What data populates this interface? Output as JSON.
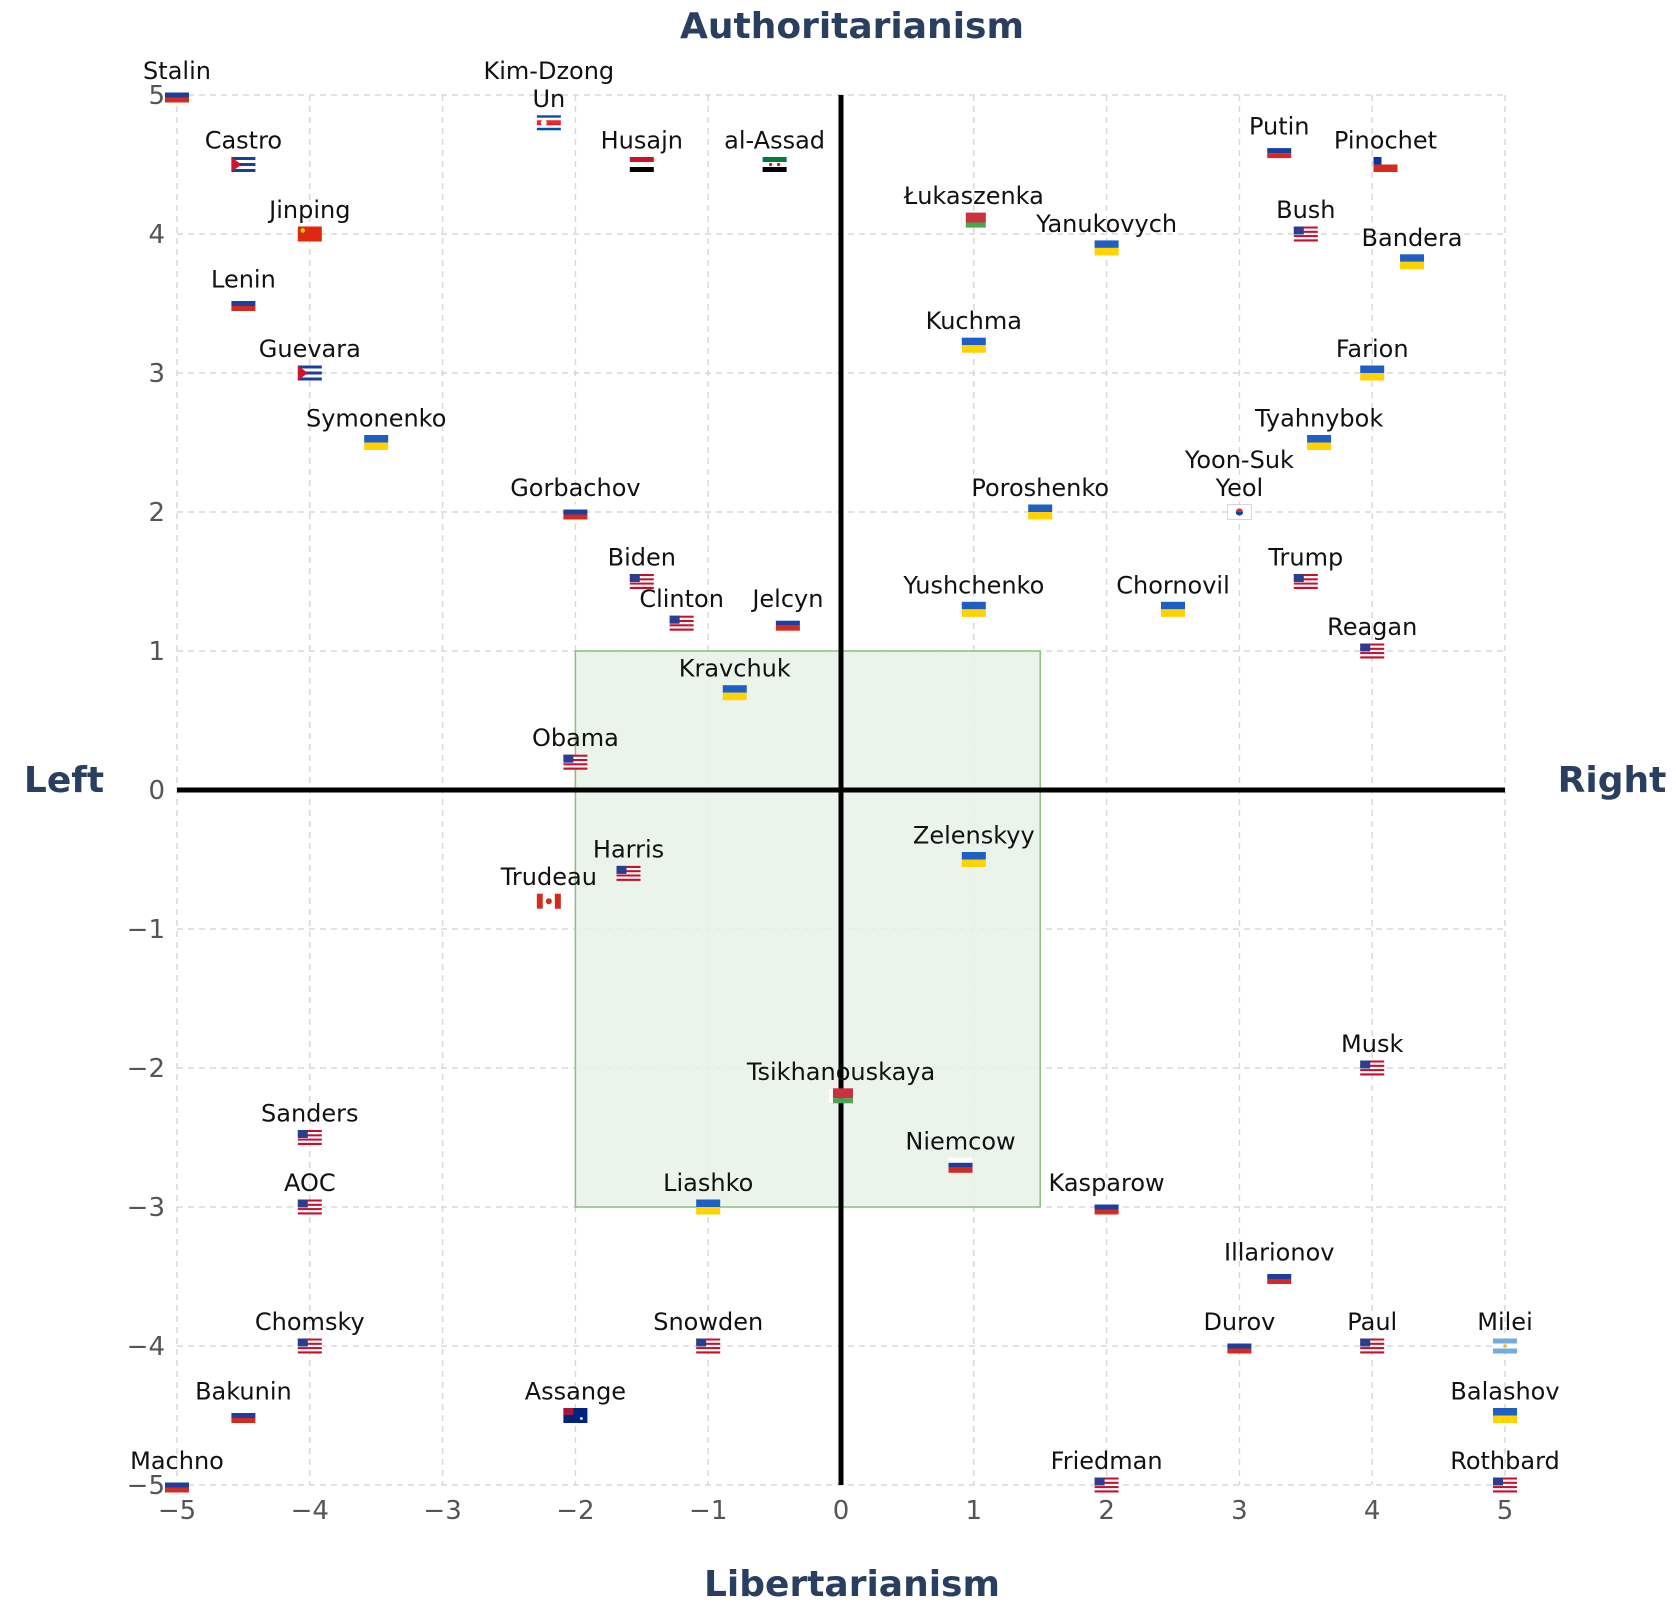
{
  "chart_data": {
    "type": "scatter",
    "title": "",
    "axis_titles": {
      "top": "Authoritarianism",
      "bottom": "Libertarianism",
      "left": "Left",
      "right": "Right"
    },
    "xlim": [
      -5,
      5
    ],
    "ylim": [
      -5,
      5
    ],
    "x_ticks": [
      {
        "value": -5,
        "label": "−5"
      },
      {
        "value": -4,
        "label": "−4"
      },
      {
        "value": -3,
        "label": "−3"
      },
      {
        "value": -2,
        "label": "−2"
      },
      {
        "value": -1,
        "label": "−1"
      },
      {
        "value": 0,
        "label": "0"
      },
      {
        "value": 1,
        "label": "1"
      },
      {
        "value": 2,
        "label": "2"
      },
      {
        "value": 3,
        "label": "3"
      },
      {
        "value": 4,
        "label": "4"
      },
      {
        "value": 5,
        "label": "5"
      }
    ],
    "y_ticks": [
      {
        "value": 5,
        "label": "5"
      },
      {
        "value": 4,
        "label": "4"
      },
      {
        "value": 3,
        "label": "3"
      },
      {
        "value": 2,
        "label": "2"
      },
      {
        "value": 1,
        "label": "1"
      },
      {
        "value": 0,
        "label": "0"
      },
      {
        "value": -1,
        "label": "−1"
      },
      {
        "value": -2,
        "label": "−2"
      },
      {
        "value": -3,
        "label": "−3"
      },
      {
        "value": -4,
        "label": "−4"
      },
      {
        "value": -5,
        "label": "−5"
      }
    ],
    "grid": true,
    "highlight_region": {
      "x": [
        -2,
        1.5
      ],
      "y": [
        -3,
        1
      ],
      "fill": "#e8f2e6",
      "stroke": "#8cbf80"
    },
    "colors": {
      "axis_line": "#000000",
      "grid": "#d9d9d9",
      "axis_title": "#2a3f5f",
      "tick": "#555555"
    },
    "points": [
      {
        "name": "Stalin",
        "x": -5,
        "y": 5,
        "flag": "russia"
      },
      {
        "name": "Kim-Dzong Un",
        "x": -2.2,
        "y": 4.8,
        "flag": "north-korea"
      },
      {
        "name": "Castro",
        "x": -4.5,
        "y": 4.5,
        "flag": "cuba"
      },
      {
        "name": "Husajn",
        "x": -1.5,
        "y": 4.5,
        "flag": "iraq"
      },
      {
        "name": "al-Assad",
        "x": -0.5,
        "y": 4.5,
        "flag": "syria"
      },
      {
        "name": "Putin",
        "x": 3.3,
        "y": 4.6,
        "flag": "russia"
      },
      {
        "name": "Pinochet",
        "x": 4.1,
        "y": 4.5,
        "flag": "chile"
      },
      {
        "name": "Jinping",
        "x": -4,
        "y": 4,
        "flag": "china"
      },
      {
        "name": "Łukaszenka",
        "x": 1,
        "y": 4.1,
        "flag": "belarus"
      },
      {
        "name": "Yanukovych",
        "x": 2,
        "y": 3.9,
        "flag": "ukraine"
      },
      {
        "name": "Bush",
        "x": 3.5,
        "y": 4,
        "flag": "usa"
      },
      {
        "name": "Bandera",
        "x": 4.3,
        "y": 3.8,
        "flag": "ukraine"
      },
      {
        "name": "Lenin",
        "x": -4.5,
        "y": 3.5,
        "flag": "russia"
      },
      {
        "name": "Kuchma",
        "x": 1,
        "y": 3.2,
        "flag": "ukraine"
      },
      {
        "name": "Guevara",
        "x": -4,
        "y": 3,
        "flag": "cuba"
      },
      {
        "name": "Farion",
        "x": 4,
        "y": 3,
        "flag": "ukraine"
      },
      {
        "name": "Symonenko",
        "x": -3.5,
        "y": 2.5,
        "flag": "ukraine"
      },
      {
        "name": "Tyahnybok",
        "x": 3.6,
        "y": 2.5,
        "flag": "ukraine"
      },
      {
        "name": "Gorbachov",
        "x": -2,
        "y": 2,
        "flag": "russia"
      },
      {
        "name": "Poroshenko",
        "x": 1.5,
        "y": 2,
        "flag": "ukraine"
      },
      {
        "name": "Yoon-Suk Yeol",
        "x": 3,
        "y": 2,
        "flag": "south-korea"
      },
      {
        "name": "Biden",
        "x": -1.5,
        "y": 1.5,
        "flag": "usa"
      },
      {
        "name": "Trump",
        "x": 3.5,
        "y": 1.5,
        "flag": "usa"
      },
      {
        "name": "Clinton",
        "x": -1.2,
        "y": 1.2,
        "flag": "usa"
      },
      {
        "name": "Jelcyn",
        "x": -0.4,
        "y": 1.2,
        "flag": "russia"
      },
      {
        "name": "Yushchenko",
        "x": 1,
        "y": 1.3,
        "flag": "ukraine"
      },
      {
        "name": "Chornovil",
        "x": 2.5,
        "y": 1.3,
        "flag": "ukraine"
      },
      {
        "name": "Reagan",
        "x": 4,
        "y": 1,
        "flag": "usa"
      },
      {
        "name": "Kravchuk",
        "x": -0.8,
        "y": 0.7,
        "flag": "ukraine"
      },
      {
        "name": "Obama",
        "x": -2,
        "y": 0.2,
        "flag": "usa"
      },
      {
        "name": "Zelenskyy",
        "x": 1,
        "y": -0.5,
        "flag": "ukraine"
      },
      {
        "name": "Harris",
        "x": -1.6,
        "y": -0.6,
        "flag": "usa"
      },
      {
        "name": "Trudeau",
        "x": -2.2,
        "y": -0.8,
        "flag": "canada"
      },
      {
        "name": "Musk",
        "x": 4,
        "y": -2,
        "flag": "usa"
      },
      {
        "name": "Tsikhanouskaya",
        "x": 0,
        "y": -2.2,
        "flag": "belarus"
      },
      {
        "name": "Sanders",
        "x": -4,
        "y": -2.5,
        "flag": "usa"
      },
      {
        "name": "Niemcow",
        "x": 0.9,
        "y": -2.7,
        "flag": "russia"
      },
      {
        "name": "AOC",
        "x": -4,
        "y": -3,
        "flag": "usa"
      },
      {
        "name": "Liashko",
        "x": -1,
        "y": -3,
        "flag": "ukraine"
      },
      {
        "name": "Kasparow",
        "x": 2,
        "y": -3,
        "flag": "russia"
      },
      {
        "name": "Illarionov",
        "x": 3.3,
        "y": -3.5,
        "flag": "russia"
      },
      {
        "name": "Chomsky",
        "x": -4,
        "y": -4,
        "flag": "usa"
      },
      {
        "name": "Snowden",
        "x": -1,
        "y": -4,
        "flag": "usa"
      },
      {
        "name": "Durov",
        "x": 3,
        "y": -4,
        "flag": "russia"
      },
      {
        "name": "Paul",
        "x": 4,
        "y": -4,
        "flag": "usa"
      },
      {
        "name": "Milei",
        "x": 5,
        "y": -4,
        "flag": "argentina"
      },
      {
        "name": "Bakunin",
        "x": -4.5,
        "y": -4.5,
        "flag": "russia"
      },
      {
        "name": "Assange",
        "x": -2,
        "y": -4.5,
        "flag": "australia"
      },
      {
        "name": "Balashov",
        "x": 5,
        "y": -4.5,
        "flag": "ukraine"
      },
      {
        "name": "Machno",
        "x": -5,
        "y": -5,
        "flag": "russia"
      },
      {
        "name": "Friedman",
        "x": 2,
        "y": -5,
        "flag": "usa"
      },
      {
        "name": "Rothbard",
        "x": 5,
        "y": -5,
        "flag": "usa"
      }
    ]
  }
}
